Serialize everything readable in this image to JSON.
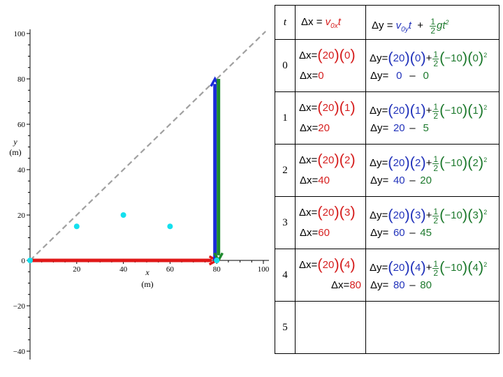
{
  "chart_data": {
    "type": "scatter",
    "xlabel": "x",
    "xunit": "(m)",
    "ylabel": "y",
    "yunit": "(m)",
    "xlim": [
      0,
      100
    ],
    "ylim": [
      -40,
      100
    ],
    "xticks": [
      "20",
      "40",
      "60",
      "80",
      "100"
    ],
    "yticks": [
      "100",
      "80",
      "60",
      "40",
      "20",
      "0",
      "−20",
      "−40"
    ],
    "points": [
      {
        "x": 0,
        "y": 0
      },
      {
        "x": 20,
        "y": 15
      },
      {
        "x": 40,
        "y": 20
      },
      {
        "x": 60,
        "y": 15
      },
      {
        "x": 80,
        "y": 0
      }
    ],
    "guide_line": {
      "x": [
        0,
        80
      ],
      "y": [
        0,
        80
      ],
      "style": "dashed"
    },
    "vectors": [
      {
        "name": "x-displacement",
        "from": [
          0,
          0
        ],
        "to": [
          80,
          0
        ],
        "color": "#e01818"
      },
      {
        "name": "up",
        "from": [
          80,
          0
        ],
        "to": [
          80,
          80
        ],
        "color": "#1a2ad8"
      },
      {
        "name": "down",
        "from": [
          80,
          80
        ],
        "to": [
          80,
          0
        ],
        "color": "#1e8a2e"
      }
    ],
    "point_color": "#14e0ee",
    "guide_color": "#a0a0a0"
  },
  "table": {
    "header": {
      "t": "t",
      "dx": {
        "delta": "Δx",
        "eq": "=",
        "v": "v",
        "sub": "0x",
        "t": "t"
      },
      "dy": {
        "delta": "Δy",
        "eq": "=",
        "v": "v",
        "sub": "0y",
        "t": "t",
        "plus": "+",
        "num": "1",
        "den": "2",
        "g": "g",
        "t2": "t",
        "sup": "2"
      }
    },
    "rows": [
      {
        "t": "0",
        "vx": "20",
        "tv": "0",
        "dx": "0",
        "vy": "20",
        "g": "−10",
        "sq": "2",
        "up": "0",
        "down": "0"
      },
      {
        "t": "1",
        "vx": "20",
        "tv": "1",
        "dx": "20",
        "vy": "20",
        "g": "−10",
        "sq": "2",
        "up": "20",
        "down": "5"
      },
      {
        "t": "2",
        "vx": "20",
        "tv": "2",
        "dx": "40",
        "vy": "20",
        "g": "−10",
        "sq": "2",
        "up": "40",
        "down": "20"
      },
      {
        "t": "3",
        "vx": "20",
        "tv": "3",
        "dx": "60",
        "vy": "20",
        "g": "−10",
        "sq": "2",
        "up": "60",
        "down": "45"
      },
      {
        "t": "4",
        "vx": "20",
        "tv": "4",
        "dx": "80",
        "vy": "20",
        "g": "−10",
        "sq": "2",
        "up": "80",
        "down": "80"
      }
    ],
    "empty_row": {
      "t": "5"
    },
    "sym": {
      "dx": "Δx",
      "dy": "Δy",
      "eq": "=",
      "plus": "+",
      "minus": "–",
      "half_num": "1",
      "half_den": "2",
      "lp": "(",
      "rp": ")"
    }
  }
}
